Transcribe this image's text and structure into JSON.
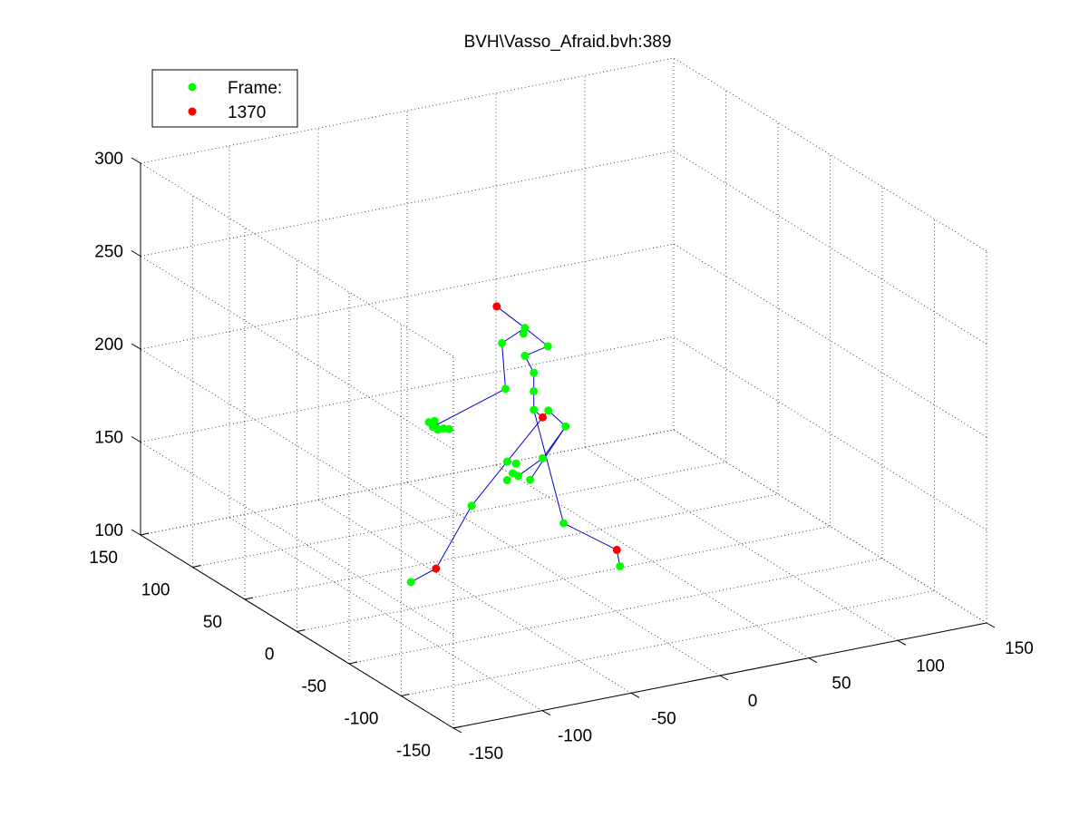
{
  "chart_data": {
    "type": "scatter",
    "title": "BVH\\Vasso_Afraid.bvh:389",
    "xlabel": "",
    "ylabel": "",
    "zlabel": "",
    "grid": true,
    "legend_position": "top-left",
    "axes": {
      "x": {
        "range": [
          -150,
          150
        ],
        "ticks": [
          "-150",
          "-100",
          "-50",
          "0",
          "50",
          "100",
          "150"
        ]
      },
      "y": {
        "range": [
          -150,
          150
        ],
        "ticks": [
          "-150",
          "-100",
          "-50",
          "0",
          "50",
          "100",
          "150"
        ]
      },
      "z": {
        "range": [
          100,
          300
        ],
        "ticks": [
          "100",
          "150",
          "200",
          "250",
          "300"
        ]
      }
    },
    "legend": [
      {
        "label": "Frame:",
        "color": "#00ff00"
      },
      {
        "label": "1370",
        "color": "#ff0000"
      }
    ],
    "colors": {
      "joints": "#00ff00",
      "end_effectors": "#ff0000",
      "bones": "#0000cc",
      "grid": "#555555"
    },
    "series": [
      {
        "name": "Frame:",
        "color": "#00ff00",
        "points": [
          {
            "x": -10,
            "y": 20,
            "z": 230
          },
          {
            "x": -12,
            "y": 18,
            "z": 228
          },
          {
            "x": -20,
            "y": 25,
            "z": 222
          },
          {
            "x": 0,
            "y": 15,
            "z": 220
          },
          {
            "x": -10,
            "y": 20,
            "z": 215
          },
          {
            "x": -5,
            "y": 20,
            "z": 205
          },
          {
            "x": -18,
            "y": 25,
            "z": 197
          },
          {
            "x": -5,
            "y": 20,
            "z": 195
          },
          {
            "x": -5,
            "y": 20,
            "z": 185
          },
          {
            "x": 2,
            "y": 18,
            "z": 184
          },
          {
            "x": 10,
            "y": 15,
            "z": 175
          },
          {
            "x": -55,
            "y": 30,
            "z": 185
          },
          {
            "x": -57,
            "y": 32,
            "z": 184
          },
          {
            "x": -56,
            "y": 30,
            "z": 182
          },
          {
            "x": -54,
            "y": 29,
            "z": 181
          },
          {
            "x": -50,
            "y": 30,
            "z": 180
          },
          {
            "x": -48,
            "y": 28,
            "z": 180
          },
          {
            "x": -52,
            "y": 32,
            "z": 179
          },
          {
            "x": -20,
            "y": 20,
            "z": 160
          },
          {
            "x": -15,
            "y": 20,
            "z": 158
          },
          {
            "x": 0,
            "y": 20,
            "z": 158
          },
          {
            "x": -18,
            "y": 18,
            "z": 154
          },
          {
            "x": -15,
            "y": 18,
            "z": 152
          },
          {
            "x": -20,
            "y": 20,
            "z": 150
          },
          {
            "x": -10,
            "y": 15,
            "z": 150
          },
          {
            "x": -40,
            "y": 20,
            "z": 140
          },
          {
            "x": 0,
            "y": 0,
            "z": 130
          },
          {
            "x": -80,
            "y": 10,
            "z": 110
          },
          {
            "x": 20,
            "y": -20,
            "z": 110
          }
        ]
      },
      {
        "name": "1370",
        "color": "#ff0000",
        "points": [
          {
            "x": -20,
            "y": 30,
            "z": 240
          },
          {
            "x": 0,
            "y": 20,
            "z": 180
          },
          {
            "x": -60,
            "y": 20,
            "z": 110
          },
          {
            "x": 30,
            "y": 0,
            "z": 110
          }
        ]
      }
    ]
  }
}
